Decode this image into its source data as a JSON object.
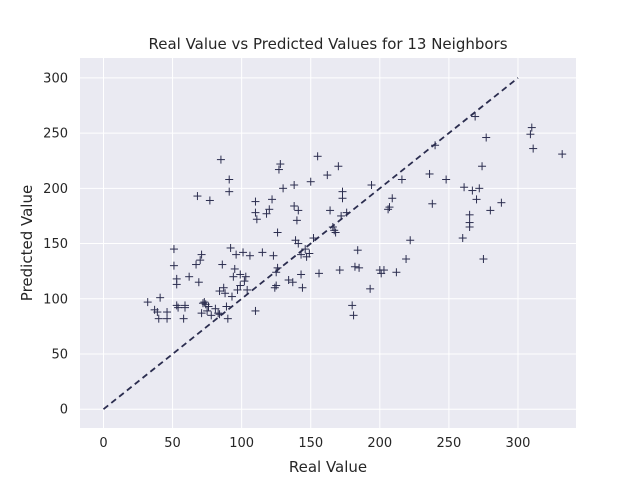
{
  "chart_data": {
    "type": "scatter",
    "title": "Real Value vs Predicted Values for 13 Neighbors",
    "xlabel": "Real Value",
    "ylabel": "Predicted Value",
    "xlim": [
      -17,
      342
    ],
    "ylim": [
      -17,
      318
    ],
    "xticks": [
      0,
      50,
      100,
      150,
      200,
      250,
      300
    ],
    "yticks": [
      0,
      50,
      100,
      150,
      200,
      250,
      300
    ],
    "grid": true,
    "background": "#EAEAF2",
    "marker": "+",
    "marker_color": "#2B2D4F",
    "reference_line": {
      "x": [
        0,
        300
      ],
      "y": [
        0,
        300
      ],
      "style": "dashed",
      "color": "#2B2D4F"
    },
    "series": [
      {
        "points": [
          [
            32,
            97
          ],
          [
            37,
            90
          ],
          [
            39,
            88
          ],
          [
            41,
            101
          ],
          [
            40,
            82
          ],
          [
            46,
            88
          ],
          [
            46,
            82
          ],
          [
            51,
            130
          ],
          [
            51,
            145
          ],
          [
            53,
            113
          ],
          [
            53,
            118
          ],
          [
            53,
            94
          ],
          [
            54,
            92
          ],
          [
            59,
            92
          ],
          [
            58,
            82
          ],
          [
            59,
            94
          ],
          [
            62,
            120
          ],
          [
            67,
            131
          ],
          [
            68,
            193
          ],
          [
            69,
            115
          ],
          [
            71,
            140
          ],
          [
            70,
            135
          ],
          [
            71,
            87
          ],
          [
            73,
            97
          ],
          [
            72,
            96
          ],
          [
            74,
            95
          ],
          [
            75,
            89
          ],
          [
            76,
            93
          ],
          [
            77,
            189
          ],
          [
            78,
            85
          ],
          [
            81,
            91
          ],
          [
            83,
            87
          ],
          [
            84,
            107
          ],
          [
            84,
            86
          ],
          [
            85,
            226
          ],
          [
            86,
            131
          ],
          [
            87,
            110
          ],
          [
            88,
            105
          ],
          [
            89,
            93
          ],
          [
            90,
            82
          ],
          [
            91,
            208
          ],
          [
            91,
            197
          ],
          [
            92,
            146
          ],
          [
            93,
            102
          ],
          [
            94,
            120
          ],
          [
            95,
            127
          ],
          [
            96,
            140
          ],
          [
            97,
            108
          ],
          [
            99,
            112
          ],
          [
            99,
            122
          ],
          [
            101,
            142
          ],
          [
            102,
            116
          ],
          [
            103,
            120
          ],
          [
            104,
            108
          ],
          [
            106,
            139
          ],
          [
            110,
            188
          ],
          [
            110,
            178
          ],
          [
            111,
            172
          ],
          [
            110,
            89
          ],
          [
            115,
            142
          ],
          [
            118,
            177
          ],
          [
            120,
            181
          ],
          [
            122,
            190
          ],
          [
            123,
            139
          ],
          [
            124,
            110
          ],
          [
            125,
            112
          ],
          [
            125,
            124
          ],
          [
            126,
            128
          ],
          [
            126,
            160
          ],
          [
            127,
            217
          ],
          [
            128,
            222
          ],
          [
            130,
            200
          ],
          [
            134,
            117
          ],
          [
            137,
            115
          ],
          [
            138,
            203
          ],
          [
            138,
            184
          ],
          [
            139,
            153
          ],
          [
            140,
            171
          ],
          [
            141,
            180
          ],
          [
            141,
            150
          ],
          [
            143,
            122
          ],
          [
            143,
            140
          ],
          [
            144,
            110
          ],
          [
            146,
            145
          ],
          [
            147,
            138
          ],
          [
            149,
            141
          ],
          [
            150,
            206
          ],
          [
            152,
            155
          ],
          [
            155,
            229
          ],
          [
            156,
            123
          ],
          [
            162,
            212
          ],
          [
            164,
            180
          ],
          [
            166,
            165
          ],
          [
            167,
            162
          ],
          [
            168,
            160
          ],
          [
            170,
            220
          ],
          [
            171,
            126
          ],
          [
            172,
            175
          ],
          [
            173,
            197
          ],
          [
            173,
            191
          ],
          [
            176,
            178
          ],
          [
            180,
            94
          ],
          [
            181,
            85
          ],
          [
            182,
            129
          ],
          [
            184,
            144
          ],
          [
            185,
            128
          ],
          [
            193,
            109
          ],
          [
            194,
            203
          ],
          [
            200,
            126
          ],
          [
            201,
            123
          ],
          [
            203,
            126
          ],
          [
            206,
            181
          ],
          [
            207,
            183
          ],
          [
            209,
            191
          ],
          [
            212,
            124
          ],
          [
            216,
            208
          ],
          [
            219,
            136
          ],
          [
            222,
            153
          ],
          [
            236,
            213
          ],
          [
            238,
            186
          ],
          [
            240,
            239
          ],
          [
            248,
            208
          ],
          [
            260,
            155
          ],
          [
            261,
            201
          ],
          [
            265,
            176
          ],
          [
            265,
            169
          ],
          [
            265,
            165
          ],
          [
            267,
            198
          ],
          [
            269,
            265
          ],
          [
            270,
            190
          ],
          [
            272,
            200
          ],
          [
            274,
            220
          ],
          [
            275,
            136
          ],
          [
            277,
            246
          ],
          [
            280,
            180
          ],
          [
            288,
            187
          ],
          [
            309,
            249
          ],
          [
            310,
            255
          ],
          [
            311,
            236
          ],
          [
            332,
            231
          ]
        ]
      }
    ]
  }
}
